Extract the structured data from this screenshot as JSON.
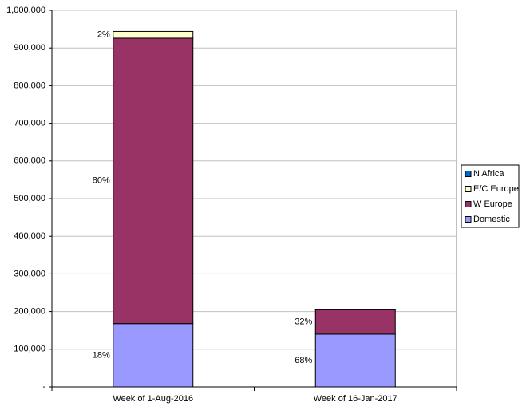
{
  "chart_data": {
    "type": "stacked-bar",
    "categories": [
      "Week of 1-Aug-2016",
      "Week of 16-Jan-2017"
    ],
    "series": [
      {
        "name": "Domestic",
        "color": "#9999ff",
        "values": [
          168000,
          140000
        ],
        "percent_labels": [
          "18%",
          "68%"
        ]
      },
      {
        "name": "W Europe",
        "color": "#993366",
        "values": [
          758000,
          65000
        ],
        "percent_labels": [
          "80%",
          "32%"
        ]
      },
      {
        "name": "E/C Europe",
        "color": "#ffffcc",
        "values": [
          18000,
          1000
        ],
        "percent_labels": [
          "2%",
          null
        ]
      },
      {
        "name": "N Africa",
        "color": "#0066cc",
        "values": [
          0,
          0
        ],
        "percent_labels": [
          null,
          null
        ]
      }
    ],
    "ylim": [
      0,
      1000000
    ],
    "yticks": [
      {
        "value": 0,
        "label": "-"
      },
      {
        "value": 100000,
        "label": "100,000"
      },
      {
        "value": 200000,
        "label": "200,000"
      },
      {
        "value": 300000,
        "label": "300,000"
      },
      {
        "value": 400000,
        "label": "400,000"
      },
      {
        "value": 500000,
        "label": "500,000"
      },
      {
        "value": 600000,
        "label": "600,000"
      },
      {
        "value": 700000,
        "label": "700,000"
      },
      {
        "value": 800000,
        "label": "800,000"
      },
      {
        "value": 900000,
        "label": "900,000"
      },
      {
        "value": 1000000,
        "label": "1,000,000"
      }
    ],
    "grid": true,
    "legend": "right"
  }
}
